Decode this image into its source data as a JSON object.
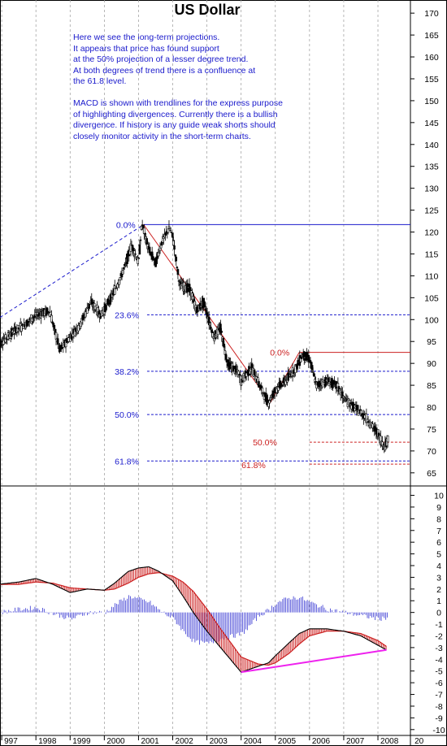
{
  "chart_data": [
    {
      "type": "candlestick",
      "title": "US Dollar",
      "annotation_paragraph_1": [
        "Here we see the long-term projections.",
        "It appears that price has found support",
        "at the 50% projection of a lesser degree trend.",
        "At both degrees of trend there is a confluence at",
        "the 61.8 level."
      ],
      "annotation_paragraph_2": [
        "MACD is shown with trendlines for the express purpose",
        "of highlighting divergences. Currently there is a bullish",
        "divergence. If history is any guide weak shorts should",
        "closely monitor activity in the short-term charts."
      ],
      "x_tick_labels": [
        "997",
        "1998",
        "1999",
        "2000",
        "2001",
        "2002",
        "2003",
        "2004",
        "2005",
        "2006",
        "2007",
        "2008",
        "20"
      ],
      "y_ticks": [
        65,
        70,
        75,
        80,
        85,
        90,
        95,
        100,
        105,
        110,
        115,
        120,
        125,
        130,
        135,
        140,
        145,
        150,
        155,
        160,
        165,
        170
      ],
      "ylim": [
        62,
        173
      ],
      "price_path": [
        [
          1996.9,
          94
        ],
        [
          1997.3,
          97
        ],
        [
          1997.7,
          99
        ],
        [
          1998.0,
          101
        ],
        [
          1998.4,
          102
        ],
        [
          1998.7,
          93
        ],
        [
          1999.0,
          96
        ],
        [
          1999.3,
          99
        ],
        [
          1999.6,
          104
        ],
        [
          1999.9,
          101
        ],
        [
          2000.2,
          105
        ],
        [
          2000.5,
          110
        ],
        [
          2000.8,
          117
        ],
        [
          2001.0,
          113
        ],
        [
          2001.1,
          122
        ],
        [
          2001.3,
          116
        ],
        [
          2001.5,
          113
        ],
        [
          2001.7,
          118
        ],
        [
          2001.9,
          121
        ],
        [
          2002.0,
          119
        ],
        [
          2002.2,
          108
        ],
        [
          2002.5,
          107
        ],
        [
          2002.7,
          102
        ],
        [
          2002.9,
          104
        ],
        [
          2003.2,
          96
        ],
        [
          2003.4,
          98
        ],
        [
          2003.6,
          90
        ],
        [
          2003.9,
          88
        ],
        [
          2004.0,
          86
        ],
        [
          2004.3,
          89
        ],
        [
          2004.6,
          84
        ],
        [
          2004.8,
          81
        ],
        [
          2005.0,
          84
        ],
        [
          2005.3,
          86
        ],
        [
          2005.6,
          89
        ],
        [
          2005.8,
          92
        ],
        [
          2006.0,
          91
        ],
        [
          2006.2,
          85
        ],
        [
          2006.5,
          86
        ],
        [
          2006.8,
          85
        ],
        [
          2007.0,
          82
        ],
        [
          2007.3,
          80
        ],
        [
          2007.6,
          78
        ],
        [
          2007.8,
          76
        ],
        [
          2008.0,
          74
        ],
        [
          2008.1,
          72
        ],
        [
          2008.2,
          71
        ],
        [
          2008.3,
          73
        ]
      ],
      "fib_large": [
        {
          "label": "0.0%",
          "value": 121.7
        },
        {
          "label": "23.6%",
          "value": 101.1
        },
        {
          "label": "38.2%",
          "value": 88.2
        },
        {
          "label": "50.0%",
          "value": 78.3
        },
        {
          "label": "61.8%",
          "value": 67.7
        }
      ],
      "fib_small": [
        {
          "label": "0.0%",
          "value": 92.5
        },
        {
          "label": "50.0%",
          "value": 72.0
        },
        {
          "label": "61.8%",
          "value": 67.0
        }
      ],
      "colors": {
        "fib_large": "#1a1acc",
        "fib_small": "#cc2020",
        "trend_down": "#cc2020",
        "trend_up_dashed": "#1a1acc",
        "candles": "#000000",
        "gridlines": "#999999",
        "note_text": "#1a1acc"
      }
    },
    {
      "type": "macd",
      "y_ticks": [
        -10,
        -9,
        -8,
        -7,
        -6,
        -5,
        -4,
        -3,
        -2,
        -1,
        0,
        1,
        2,
        3,
        4,
        5,
        6,
        7,
        8,
        9,
        10
      ],
      "ylim": [
        -10.5,
        10.8
      ],
      "macd_path": [
        [
          1996.9,
          2.4
        ],
        [
          1997.5,
          2.6
        ],
        [
          1998.0,
          2.9
        ],
        [
          1998.5,
          2.4
        ],
        [
          1999.0,
          1.7
        ],
        [
          1999.5,
          2.0
        ],
        [
          2000.0,
          1.9
        ],
        [
          2000.3,
          2.5
        ],
        [
          2000.7,
          3.5
        ],
        [
          2001.0,
          3.8
        ],
        [
          2001.3,
          3.9
        ],
        [
          2001.6,
          3.5
        ],
        [
          2002.0,
          2.7
        ],
        [
          2002.3,
          1.4
        ],
        [
          2002.6,
          0.0
        ],
        [
          2003.0,
          -1.6
        ],
        [
          2003.4,
          -3.0
        ],
        [
          2003.8,
          -4.4
        ],
        [
          2004.0,
          -5.1
        ],
        [
          2004.5,
          -4.6
        ],
        [
          2004.8,
          -4.3
        ],
        [
          2005.0,
          -3.7
        ],
        [
          2005.4,
          -2.6
        ],
        [
          2005.7,
          -1.8
        ],
        [
          2006.0,
          -1.4
        ],
        [
          2006.5,
          -1.4
        ],
        [
          2007.0,
          -1.6
        ],
        [
          2007.5,
          -2.0
        ],
        [
          2008.0,
          -2.8
        ],
        [
          2008.25,
          -3.2
        ]
      ],
      "signal_path": [
        [
          1996.9,
          2.4
        ],
        [
          1997.5,
          2.4
        ],
        [
          1998.0,
          2.6
        ],
        [
          1998.5,
          2.5
        ],
        [
          1999.0,
          2.1
        ],
        [
          1999.5,
          2.0
        ],
        [
          2000.0,
          1.9
        ],
        [
          2000.3,
          2.0
        ],
        [
          2000.7,
          2.5
        ],
        [
          2001.0,
          3.0
        ],
        [
          2001.3,
          3.3
        ],
        [
          2001.6,
          3.4
        ],
        [
          2002.0,
          3.1
        ],
        [
          2002.3,
          2.6
        ],
        [
          2002.6,
          1.8
        ],
        [
          2003.0,
          0.3
        ],
        [
          2003.4,
          -1.4
        ],
        [
          2003.8,
          -3.0
        ],
        [
          2004.0,
          -3.8
        ],
        [
          2004.5,
          -4.4
        ],
        [
          2004.8,
          -4.5
        ],
        [
          2005.0,
          -4.3
        ],
        [
          2005.4,
          -3.5
        ],
        [
          2005.7,
          -2.7
        ],
        [
          2006.0,
          -2.0
        ],
        [
          2006.5,
          -1.6
        ],
        [
          2007.0,
          -1.6
        ],
        [
          2007.5,
          -1.8
        ],
        [
          2008.0,
          -2.4
        ],
        [
          2008.25,
          -2.9
        ]
      ],
      "divergence_trendline": [
        [
          2004.0,
          -5.1
        ],
        [
          2008.25,
          -3.2
        ]
      ],
      "colors": {
        "histogram_positive": "#cc2020",
        "histogram_negative": "#1a1acc",
        "macd_line": "#000000",
        "signal_line": "#cc2020",
        "divergence_trendline": "#ee22ee"
      }
    }
  ]
}
